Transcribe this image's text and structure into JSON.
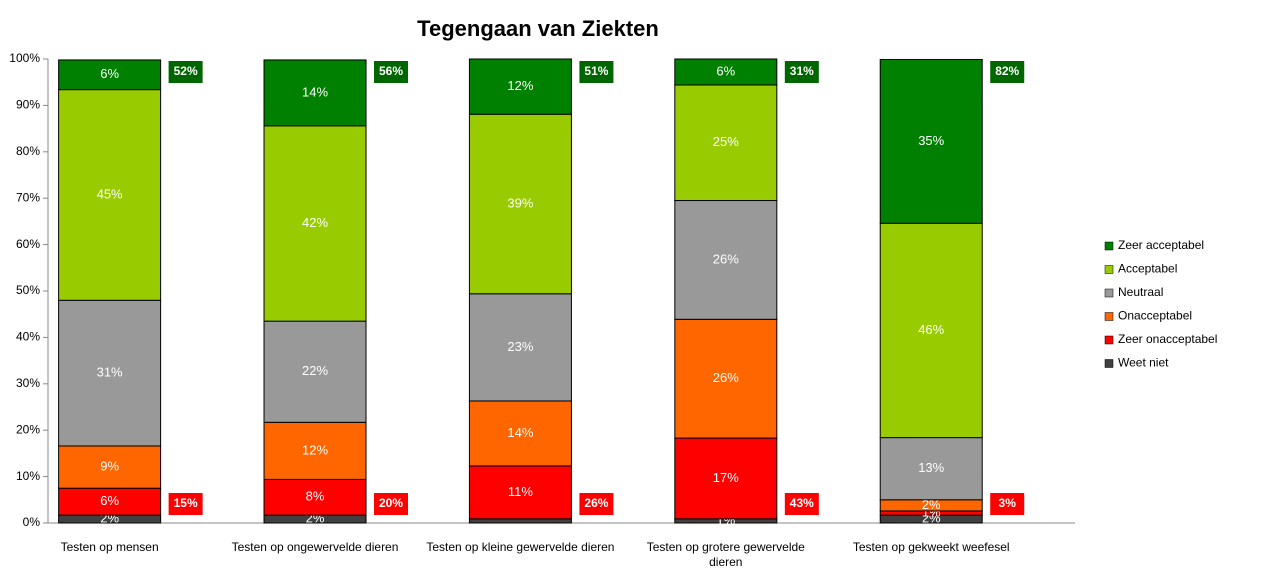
{
  "chart_data": {
    "type": "stacked-bar",
    "title": "Tegengaan van Ziekten",
    "categories": [
      "Testen op mensen",
      "Testen op ongewervelde dieren",
      "Testen op kleine gewervelde dieren",
      "Testen op grotere gewervelde dieren",
      "Testen op gekweekt weefesel"
    ],
    "series": [
      {
        "name": "Weet niet",
        "color": "#404040",
        "values": [
          1.7,
          1.7,
          0.9,
          0.9,
          1.7
        ],
        "value_labels": [
          "2%",
          "2%",
          null,
          "1%",
          "2%"
        ]
      },
      {
        "name": "Zeer onacceptabel",
        "color": "#ff0000",
        "values": [
          5.8,
          7.7,
          11.4,
          17.4,
          0.9
        ],
        "value_labels": [
          "6%",
          "8%",
          "11%",
          "17%",
          "1%"
        ]
      },
      {
        "name": "Onacceptabel",
        "color": "#ff6600",
        "values": [
          9.1,
          12.3,
          14,
          25.6,
          2.4
        ],
        "value_labels": [
          "9%",
          "12%",
          "14%",
          "26%",
          "2%"
        ]
      },
      {
        "name": "Neutraal",
        "color": "#999999",
        "values": [
          31.4,
          21.8,
          23.1,
          25.6,
          13.4
        ],
        "value_labels": [
          "31%",
          "22%",
          "23%",
          "26%",
          "13%"
        ]
      },
      {
        "name": "Acceptabel",
        "color": "#99cc00",
        "values": [
          45.4,
          42.1,
          38.7,
          24.9,
          46.2
        ],
        "value_labels": [
          "45%",
          "42%",
          "39%",
          "25%",
          "46%"
        ]
      },
      {
        "name": "Zeer acceptabel",
        "color": "#008000",
        "values": [
          6.4,
          14.2,
          11.9,
          5.6,
          35.3
        ],
        "value_labels": [
          "6%",
          "14%",
          "12%",
          "6%",
          "35%"
        ]
      }
    ],
    "positive_totals": {
      "color": "#006600",
      "values": [
        52,
        56,
        51,
        31,
        82
      ],
      "value_labels": [
        "52%",
        "56%",
        "51%",
        "31%",
        "82%"
      ]
    },
    "negative_totals": {
      "color": "#ff0000",
      "values": [
        15,
        20,
        26,
        43,
        3
      ],
      "value_labels": [
        "15%",
        "20%",
        "26%",
        "43%",
        "3%"
      ]
    },
    "ylim": [
      0,
      100
    ],
    "yticks": [
      {
        "value": 0,
        "label": "0%"
      },
      {
        "value": 10,
        "label": "10%"
      },
      {
        "value": 20,
        "label": "20%"
      },
      {
        "value": 30,
        "label": "30%"
      },
      {
        "value": 40,
        "label": "40%"
      },
      {
        "value": 50,
        "label": "50%"
      },
      {
        "value": 60,
        "label": "60%"
      },
      {
        "value": 70,
        "label": "70%"
      },
      {
        "value": 80,
        "label": "80%"
      },
      {
        "value": 90,
        "label": "90%"
      },
      {
        "value": 100,
        "label": "100%"
      }
    ],
    "legend": "right",
    "grid": false
  }
}
